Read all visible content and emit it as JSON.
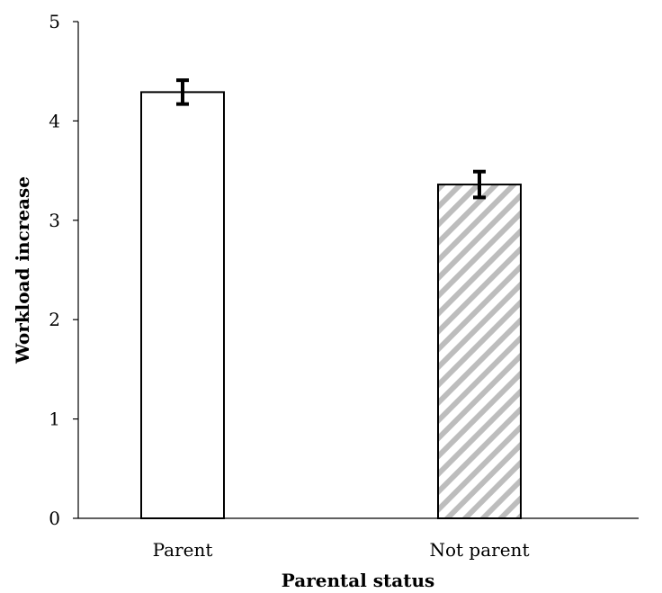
{
  "chart_data": {
    "type": "bar",
    "categories": [
      "Parent",
      "Not parent"
    ],
    "values": [
      4.29,
      3.36
    ],
    "error": [
      0.12,
      0.13
    ],
    "xlabel": "Parental status",
    "ylabel": "Workload increase",
    "ylim": [
      0,
      5
    ],
    "yticks": [
      "0",
      "1",
      "2",
      "3",
      "4",
      "5"
    ],
    "grid": false,
    "legend": "none",
    "bar_styles": [
      "solid-white",
      "diagonal-hatch-gray"
    ],
    "colors": {
      "bar_edge": "#000000",
      "bar_fill_1": "#ffffff",
      "hatch": "#bdbdbd",
      "axis": "#000000"
    }
  }
}
